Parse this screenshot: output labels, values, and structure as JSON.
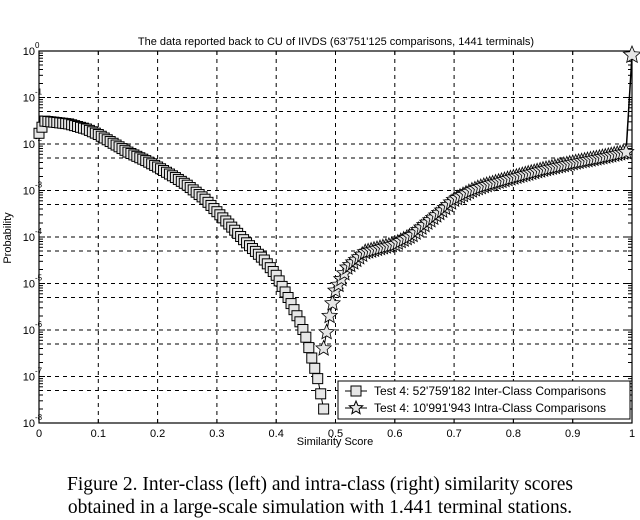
{
  "chart_data": {
    "type": "scatter",
    "title": "The data reported back to CU of IIVDS (63'751'125 comparisons, 1441 terminals)",
    "xlabel": "Similarity Score",
    "ylabel": "Probability",
    "xlim": [
      0,
      1
    ],
    "ylim": [
      1e-08,
      1
    ],
    "yscale": "log",
    "grid": true,
    "legend_position": "lower right",
    "x_ticks": [
      "0",
      "0.1",
      "0.2",
      "0.3",
      "0.4",
      "0.5",
      "0.6",
      "0.7",
      "0.8",
      "0.9",
      "1"
    ],
    "y_ticks": [
      "10^0",
      "10^-1",
      "10^-2",
      "10^-3",
      "10^-4",
      "10^-5",
      "10^-6",
      "10^-7",
      "10^-8"
    ],
    "series": [
      {
        "name": "Test 4: 52'759'182 Inter-Class Comparisons",
        "marker": "square",
        "x": [
          0.0,
          0.01,
          0.03,
          0.05,
          0.08,
          0.1,
          0.13,
          0.15,
          0.18,
          0.2,
          0.23,
          0.25,
          0.28,
          0.3,
          0.33,
          0.35,
          0.38,
          0.4,
          0.42,
          0.44,
          0.45,
          0.46,
          0.47,
          0.48
        ],
        "values": [
          0.017,
          0.031,
          0.029,
          0.027,
          0.021,
          0.016,
          0.0095,
          0.0067,
          0.0044,
          0.0032,
          0.0019,
          0.0013,
          0.00065,
          0.00035,
          0.00014,
          7.5e-05,
          3.2e-05,
          1.5e-05,
          5e-06,
          1.5e-06,
          7e-07,
          2.5e-07,
          9e-08,
          2e-08
        ]
      },
      {
        "name": "Test 4: 10'991'943 Intra-Class Comparisons",
        "marker": "star",
        "x": [
          0.48,
          0.49,
          0.5,
          0.52,
          0.55,
          0.58,
          0.6,
          0.63,
          0.65,
          0.68,
          0.7,
          0.73,
          0.75,
          0.8,
          0.85,
          0.9,
          0.95,
          0.99,
          1.0
        ],
        "values": [
          4e-07,
          2e-06,
          7e-06,
          2.2e-05,
          4.7e-05,
          6e-05,
          7e-05,
          0.00011,
          0.00018,
          0.00037,
          0.00063,
          0.001,
          0.00125,
          0.0019,
          0.0028,
          0.0039,
          0.0052,
          0.0067,
          0.82
        ]
      }
    ]
  },
  "figure": {
    "title": "The data reported back to CU of IIVDS (63'751'125 comparisons, 1441 terminals)",
    "xlabel": "Similarity Score",
    "ylabel": "Probability",
    "legend": [
      "Test 4: 52'759'182 Inter-Class Comparisons",
      "Test 4: 10'991'943 Intra-Class Comparisons"
    ],
    "caption_line1": "Figure 2.    Inter-class (left) and intra-class (right) similarity scores",
    "caption_line2": "obtained in a large-scale simulation with 1.441 terminal stations."
  }
}
